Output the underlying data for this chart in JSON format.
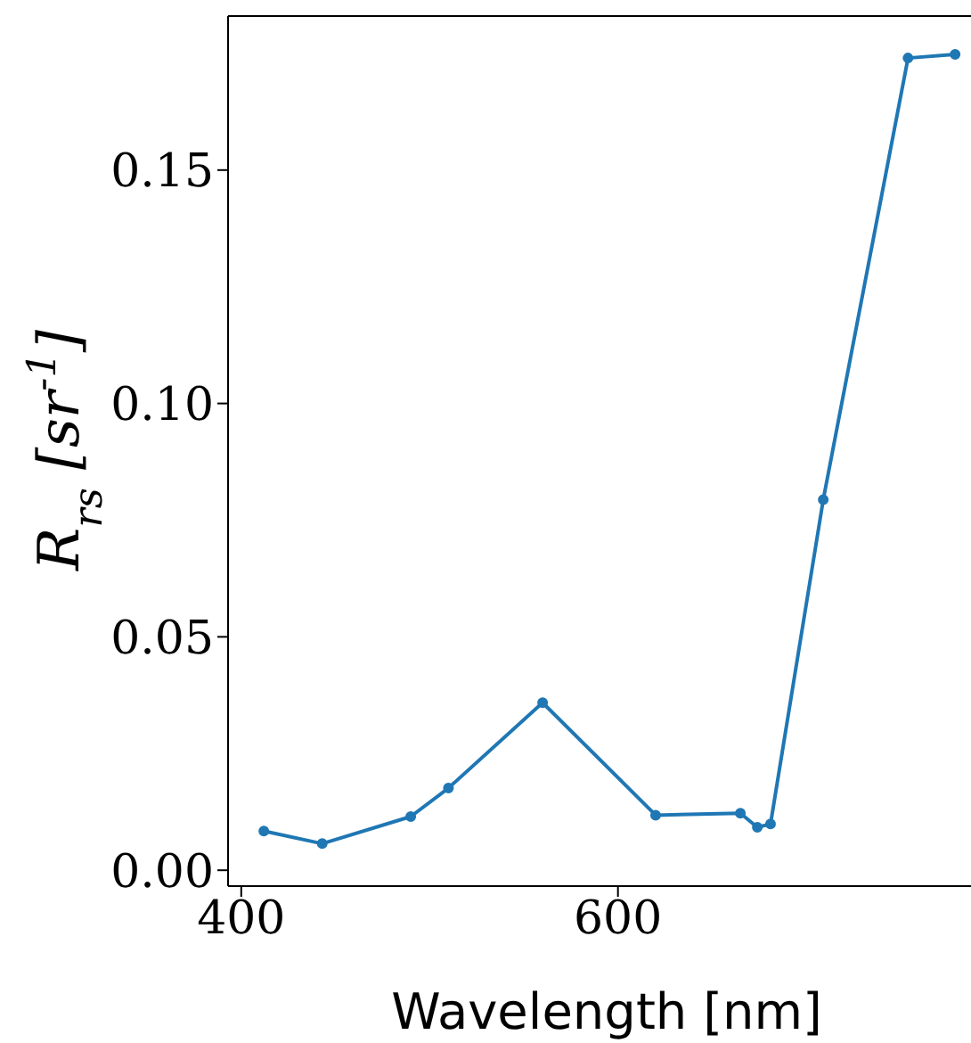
{
  "chart_data": {
    "type": "line",
    "xlabel": "Wavelength [nm]",
    "ylabel": "R$_{rs}$ [sr$^{-1}$]",
    "x": [
      412,
      443,
      490,
      510,
      560,
      620,
      665,
      674,
      681,
      709,
      754,
      779
    ],
    "series": [
      {
        "color": "#1f77b4",
        "values": [
          0.0084,
          0.0057,
          0.0115,
          0.0176,
          0.0359,
          0.0118,
          0.0122,
          0.0092,
          0.0099,
          0.0794,
          0.174,
          0.1748
        ]
      }
    ],
    "xlim": [
      393,
      795
    ],
    "xticks": [
      400,
      600
    ],
    "ylim": [
      -0.0034,
      0.183
    ],
    "yticks": [
      {
        "value": 0,
        "label": "0.00"
      },
      0.05,
      {
        "value": 0.1,
        "label": "0.10"
      },
      0.15
    ],
    "marker": "circle",
    "line_style": "solid",
    "grid": false
  }
}
